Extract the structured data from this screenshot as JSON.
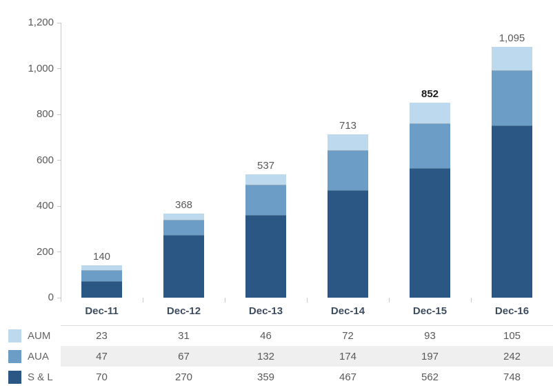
{
  "chart_data": {
    "type": "bar",
    "stacked": true,
    "title": "",
    "xlabel": "",
    "ylabel": "",
    "grid": false,
    "legend_position": "left-of-table-below-chart",
    "categories": [
      "Dec-11",
      "Dec-12",
      "Dec-13",
      "Dec-14",
      "Dec-15",
      "Dec-16"
    ],
    "series": [
      {
        "name": "AUM",
        "color": "#bcd9ee",
        "values": [
          23,
          31,
          46,
          72,
          93,
          105
        ]
      },
      {
        "name": "AUA",
        "color": "#6b9dc6",
        "values": [
          47,
          67,
          132,
          174,
          197,
          242
        ]
      },
      {
        "name": "S & L",
        "color": "#2a5783",
        "values": [
          70,
          270,
          359,
          467,
          562,
          748
        ]
      }
    ],
    "stack_order_bottom_to_top": [
      "S & L",
      "AUA",
      "AUM"
    ],
    "totals": [
      140,
      368,
      537,
      713,
      852,
      1095
    ],
    "totals_labels": [
      "140",
      "368",
      "537",
      "713",
      "852",
      "1,095"
    ],
    "emphasized_total_index": 4,
    "ylim": [
      0,
      1200
    ],
    "ytick_values": [
      0,
      200,
      400,
      600,
      800,
      1000,
      1200
    ],
    "ytick_labels": [
      "0",
      "200",
      "400",
      "600",
      "800",
      "1,000",
      "1,200"
    ]
  },
  "table": {
    "rows": [
      {
        "label": "AUM",
        "swatch": "#bcd9ee",
        "striped": false,
        "values": [
          "23",
          "31",
          "46",
          "72",
          "93",
          "105"
        ]
      },
      {
        "label": "AUA",
        "swatch": "#6b9dc6",
        "striped": true,
        "values": [
          "47",
          "67",
          "132",
          "174",
          "197",
          "242"
        ]
      },
      {
        "label": "S & L",
        "swatch": "#2a5783",
        "striped": false,
        "values": [
          "70",
          "270",
          "359",
          "467",
          "562",
          "748"
        ]
      }
    ]
  },
  "colors": {
    "axis": "#c9c9c9",
    "tick_text": "#595959",
    "x_label_text": "#3d4c5e",
    "total_text": "#595959",
    "total_emphasis_text": "#1a1a1a",
    "table_text": "#595959",
    "legend_text": "#646464",
    "stripe": "#efefef",
    "table_top_border": "#d9d9d9",
    "background": "#ffffff"
  }
}
